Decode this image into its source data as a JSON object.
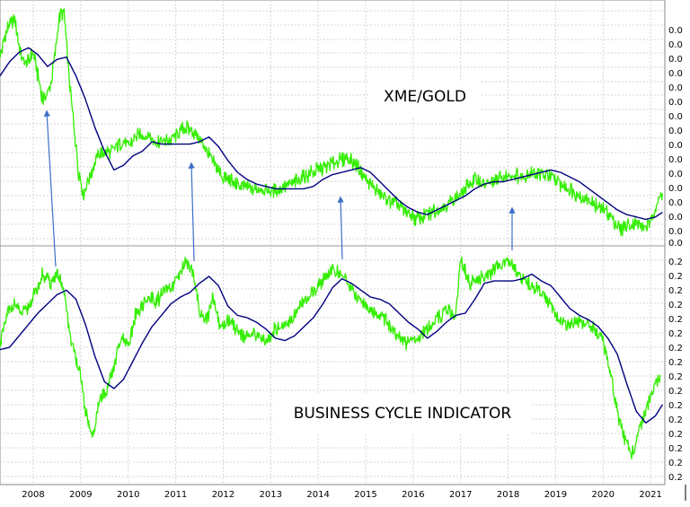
{
  "chart_data": [
    {
      "type": "line",
      "panel": "top",
      "label": "XME/GOLD",
      "xlim": [
        2007.3,
        2021.3
      ],
      "ylim": [
        0,
        1
      ],
      "grid": true,
      "ytick_labels": [
        "0.0",
        "0.0",
        "0.0",
        "0.0",
        "0.0",
        "0.0",
        "0.0",
        "0.0",
        "0.0",
        "0.0",
        "0.0",
        "0.0",
        "0.0",
        "0.0",
        "0.0",
        "0.0"
      ],
      "series": [
        {
          "color": "#33ee00",
          "x": [
            2007.3,
            2007.45,
            2007.6,
            2007.75,
            2007.85,
            2008.0,
            2008.1,
            2008.2,
            2008.3,
            2008.4,
            2008.55,
            2008.65,
            2008.75,
            2008.85,
            2008.95,
            2009.05,
            2009.2,
            2009.35,
            2009.5,
            2009.6,
            2009.75,
            2009.9,
            2010.0,
            2010.15,
            2010.3,
            2010.45,
            2010.6,
            2010.75,
            2010.9,
            2011.05,
            2011.2,
            2011.35,
            2011.5,
            2011.65,
            2011.8,
            2012.0,
            2012.2,
            2012.4,
            2012.6,
            2012.8,
            2013.0,
            2013.2,
            2013.4,
            2013.6,
            2013.8,
            2014.0,
            2014.2,
            2014.4,
            2014.6,
            2014.8,
            2015.0,
            2015.2,
            2015.4,
            2015.6,
            2015.8,
            2016.0,
            2016.1,
            2016.3,
            2016.5,
            2016.7,
            2016.9,
            2017.1,
            2017.3,
            2017.5,
            2017.7,
            2017.9,
            2018.1,
            2018.3,
            2018.5,
            2018.7,
            2018.9,
            2019.1,
            2019.3,
            2019.5,
            2019.7,
            2019.9,
            2020.1,
            2020.2,
            2020.35,
            2020.5,
            2020.7,
            2020.9,
            2021.0,
            2021.1,
            2021.25
          ],
          "y": [
            0.78,
            0.9,
            0.95,
            0.78,
            0.75,
            0.8,
            0.7,
            0.6,
            0.62,
            0.7,
            0.95,
            0.97,
            0.7,
            0.5,
            0.3,
            0.2,
            0.28,
            0.36,
            0.38,
            0.37,
            0.4,
            0.42,
            0.4,
            0.44,
            0.45,
            0.44,
            0.42,
            0.42,
            0.43,
            0.45,
            0.48,
            0.47,
            0.43,
            0.38,
            0.33,
            0.27,
            0.25,
            0.23,
            0.22,
            0.22,
            0.21,
            0.22,
            0.24,
            0.26,
            0.28,
            0.3,
            0.32,
            0.34,
            0.35,
            0.32,
            0.26,
            0.22,
            0.18,
            0.16,
            0.13,
            0.1,
            0.09,
            0.11,
            0.13,
            0.15,
            0.18,
            0.22,
            0.26,
            0.24,
            0.25,
            0.27,
            0.28,
            0.27,
            0.29,
            0.28,
            0.27,
            0.24,
            0.22,
            0.19,
            0.17,
            0.14,
            0.12,
            0.09,
            0.05,
            0.06,
            0.07,
            0.06,
            0.07,
            0.14,
            0.2
          ]
        },
        {
          "color": "#000080",
          "x": [
            2007.3,
            2007.5,
            2007.7,
            2007.9,
            2008.1,
            2008.3,
            2008.5,
            2008.7,
            2008.9,
            2009.1,
            2009.3,
            2009.5,
            2009.7,
            2009.9,
            2010.1,
            2010.3,
            2010.5,
            2010.7,
            2010.9,
            2011.1,
            2011.3,
            2011.5,
            2011.7,
            2011.9,
            2012.1,
            2012.3,
            2012.5,
            2012.7,
            2012.9,
            2013.1,
            2013.3,
            2013.5,
            2013.7,
            2013.9,
            2014.1,
            2014.3,
            2014.5,
            2014.7,
            2014.9,
            2015.1,
            2015.3,
            2015.5,
            2015.7,
            2015.9,
            2016.1,
            2016.3,
            2016.5,
            2016.7,
            2016.9,
            2017.1,
            2017.3,
            2017.5,
            2017.7,
            2017.9,
            2018.1,
            2018.3,
            2018.5,
            2018.7,
            2018.9,
            2019.1,
            2019.3,
            2019.5,
            2019.7,
            2019.9,
            2020.1,
            2020.3,
            2020.5,
            2020.7,
            2020.9,
            2021.1,
            2021.25
          ],
          "y": [
            0.7,
            0.76,
            0.8,
            0.82,
            0.79,
            0.74,
            0.77,
            0.78,
            0.7,
            0.6,
            0.48,
            0.38,
            0.3,
            0.32,
            0.36,
            0.38,
            0.42,
            0.41,
            0.41,
            0.41,
            0.41,
            0.42,
            0.44,
            0.4,
            0.34,
            0.29,
            0.26,
            0.24,
            0.23,
            0.22,
            0.22,
            0.22,
            0.22,
            0.23,
            0.26,
            0.28,
            0.29,
            0.3,
            0.31,
            0.29,
            0.25,
            0.21,
            0.17,
            0.14,
            0.12,
            0.11,
            0.13,
            0.15,
            0.17,
            0.19,
            0.22,
            0.24,
            0.25,
            0.25,
            0.26,
            0.27,
            0.28,
            0.29,
            0.3,
            0.29,
            0.27,
            0.25,
            0.22,
            0.19,
            0.16,
            0.13,
            0.11,
            0.1,
            0.09,
            0.1,
            0.12
          ]
        }
      ]
    },
    {
      "type": "line",
      "panel": "bottom",
      "label": "BUSINESS CYCLE INDICATOR",
      "xlim": [
        2007.3,
        2021.3
      ],
      "ylim": [
        0,
        1
      ],
      "grid": true,
      "ytick_labels": [
        "0.2",
        "0.2",
        "0.2",
        "0.2",
        "0.2",
        "0.2",
        "0.2",
        "0.2",
        "0.2",
        "0.2",
        "0.2",
        "0.2",
        "0.2",
        "0.2",
        "0.2",
        "0.2"
      ],
      "x_tick_labels": [
        "2008",
        "2009",
        "2010",
        "2011",
        "2012",
        "2013",
        "2014",
        "2015",
        "2016",
        "2017",
        "2018",
        "2019",
        "2020",
        "2021"
      ],
      "x_tick_values": [
        2008.0,
        2009.0,
        2010.0,
        2011.0,
        2012.0,
        2013.0,
        2014.0,
        2015.0,
        2016.0,
        2017.0,
        2018.0,
        2019.0,
        2020.0,
        2021.0
      ],
      "series": [
        {
          "color": "#33ee00",
          "x": [
            2007.3,
            2007.45,
            2007.6,
            2007.75,
            2007.9,
            2008.05,
            2008.2,
            2008.35,
            2008.5,
            2008.65,
            2008.8,
            2008.95,
            2009.1,
            2009.25,
            2009.4,
            2009.55,
            2009.7,
            2009.85,
            2010.0,
            2010.15,
            2010.3,
            2010.45,
            2010.6,
            2010.75,
            2010.9,
            2011.05,
            2011.2,
            2011.35,
            2011.5,
            2011.65,
            2011.8,
            2011.95,
            2012.1,
            2012.3,
            2012.5,
            2012.7,
            2012.9,
            2013.1,
            2013.3,
            2013.5,
            2013.7,
            2013.9,
            2014.1,
            2014.3,
            2014.5,
            2014.7,
            2014.9,
            2015.1,
            2015.3,
            2015.5,
            2015.7,
            2015.9,
            2016.1,
            2016.3,
            2016.5,
            2016.7,
            2016.9,
            2017.0,
            2017.2,
            2017.4,
            2017.6,
            2017.8,
            2018.0,
            2018.2,
            2018.4,
            2018.6,
            2018.8,
            2019.0,
            2019.2,
            2019.4,
            2019.6,
            2019.8,
            2020.0,
            2020.15,
            2020.3,
            2020.45,
            2020.6,
            2020.75,
            2020.9,
            2021.05,
            2021.2
          ],
          "y": [
            0.6,
            0.72,
            0.78,
            0.72,
            0.76,
            0.82,
            0.9,
            0.86,
            0.9,
            0.82,
            0.6,
            0.5,
            0.3,
            0.18,
            0.35,
            0.4,
            0.5,
            0.62,
            0.58,
            0.72,
            0.76,
            0.8,
            0.78,
            0.82,
            0.84,
            0.88,
            0.95,
            0.92,
            0.74,
            0.7,
            0.8,
            0.66,
            0.7,
            0.66,
            0.62,
            0.64,
            0.6,
            0.66,
            0.68,
            0.72,
            0.78,
            0.82,
            0.88,
            0.92,
            0.9,
            0.84,
            0.78,
            0.74,
            0.72,
            0.68,
            0.62,
            0.6,
            0.62,
            0.66,
            0.7,
            0.74,
            0.72,
            0.96,
            0.86,
            0.88,
            0.9,
            0.94,
            0.96,
            0.9,
            0.86,
            0.84,
            0.8,
            0.72,
            0.68,
            0.7,
            0.68,
            0.66,
            0.6,
            0.48,
            0.3,
            0.18,
            0.1,
            0.22,
            0.3,
            0.4,
            0.46
          ]
        },
        {
          "color": "#000080",
          "x": [
            2007.3,
            2007.5,
            2007.7,
            2007.9,
            2008.1,
            2008.3,
            2008.5,
            2008.7,
            2008.9,
            2009.1,
            2009.3,
            2009.5,
            2009.7,
            2009.9,
            2010.1,
            2010.3,
            2010.5,
            2010.7,
            2010.9,
            2011.1,
            2011.3,
            2011.5,
            2011.7,
            2011.9,
            2012.1,
            2012.3,
            2012.5,
            2012.7,
            2012.9,
            2013.1,
            2013.3,
            2013.5,
            2013.7,
            2013.9,
            2014.1,
            2014.3,
            2014.5,
            2014.7,
            2014.9,
            2015.1,
            2015.3,
            2015.5,
            2015.7,
            2015.9,
            2016.1,
            2016.3,
            2016.5,
            2016.7,
            2016.9,
            2017.1,
            2017.3,
            2017.5,
            2017.7,
            2017.9,
            2018.1,
            2018.3,
            2018.5,
            2018.7,
            2018.9,
            2019.1,
            2019.3,
            2019.5,
            2019.7,
            2019.9,
            2020.1,
            2020.3,
            2020.5,
            2020.7,
            2020.9,
            2021.1,
            2021.25
          ],
          "y": [
            0.57,
            0.58,
            0.63,
            0.68,
            0.73,
            0.77,
            0.81,
            0.83,
            0.79,
            0.68,
            0.54,
            0.43,
            0.4,
            0.44,
            0.52,
            0.6,
            0.67,
            0.72,
            0.77,
            0.8,
            0.82,
            0.86,
            0.89,
            0.85,
            0.76,
            0.72,
            0.71,
            0.69,
            0.66,
            0.62,
            0.61,
            0.63,
            0.67,
            0.71,
            0.77,
            0.84,
            0.88,
            0.86,
            0.83,
            0.8,
            0.79,
            0.77,
            0.73,
            0.69,
            0.66,
            0.62,
            0.65,
            0.69,
            0.72,
            0.73,
            0.79,
            0.86,
            0.87,
            0.87,
            0.87,
            0.88,
            0.9,
            0.87,
            0.85,
            0.8,
            0.75,
            0.72,
            0.7,
            0.67,
            0.62,
            0.55,
            0.42,
            0.3,
            0.25,
            0.28,
            0.33
          ]
        }
      ]
    }
  ]
}
